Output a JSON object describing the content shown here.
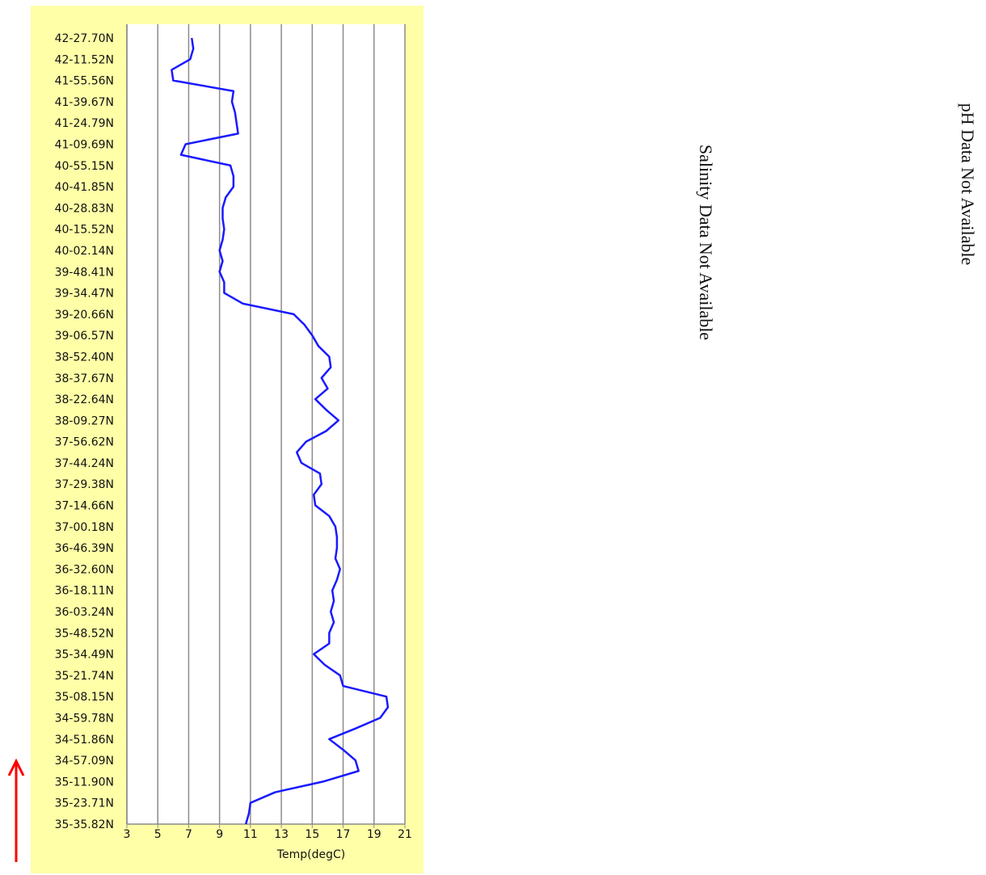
{
  "chart_data": {
    "type": "line",
    "orientation": "horizontal",
    "x_label": "Temp(degC)",
    "xlim": [
      3,
      21
    ],
    "xticks": [
      3,
      5,
      7,
      9,
      11,
      13,
      15,
      17,
      19,
      21
    ],
    "grid": true,
    "color": "#1a1aff",
    "categories": [
      "35-35.82N",
      null,
      "35-23.71N",
      null,
      "35-11.90N",
      null,
      "34-57.09N",
      null,
      "34-51.86N",
      null,
      "34-59.78N",
      null,
      "35-08.15N",
      null,
      "35-21.74N",
      null,
      "35-34.49N",
      null,
      "35-48.52N",
      null,
      "36-03.24N",
      null,
      "36-18.11N",
      null,
      "36-32.60N",
      null,
      "36-46.39N",
      null,
      "37-00.18N",
      null,
      "37-14.66N",
      null,
      "37-29.38N",
      null,
      "37-44.24N",
      null,
      "37-56.62N",
      null,
      "38-09.27N",
      null,
      "38-22.64N",
      null,
      "38-37.67N",
      null,
      "38-52.40N",
      null,
      "39-06.57N",
      null,
      "39-20.66N",
      null,
      "39-34.47N",
      null,
      "39-48.41N",
      null,
      "40-02.14N",
      null,
      "40-15.52N",
      null,
      "40-28.83N",
      null,
      "40-41.85N",
      null,
      "40-55.15N",
      null,
      "41-09.69N",
      null,
      "41-24.79N",
      null,
      "41-39.67N",
      null,
      "41-55.56N",
      null,
      "42-11.52N",
      null,
      "42-27.70N"
    ],
    "values": [
      10.7,
      10.9,
      11.0,
      12.6,
      15.7,
      18.0,
      17.8,
      17.0,
      16.1,
      17.8,
      19.4,
      19.9,
      19.8,
      17.0,
      16.8,
      15.8,
      15.1,
      16.1,
      16.1,
      16.4,
      16.2,
      16.4,
      16.3,
      16.6,
      16.8,
      16.5,
      16.6,
      16.6,
      16.5,
      16.1,
      15.2,
      15.1,
      15.6,
      15.5,
      14.3,
      14.0,
      14.6,
      15.9,
      16.7,
      15.9,
      15.2,
      16.0,
      15.6,
      16.2,
      16.1,
      15.4,
      15.0,
      14.5,
      13.8,
      10.5,
      9.3,
      9.3,
      9.0,
      9.2,
      9.0,
      9.2,
      9.3,
      9.2,
      9.2,
      9.4,
      9.9,
      9.9,
      9.7,
      6.5,
      6.8,
      10.2,
      10.1,
      10.0,
      9.8,
      9.9,
      6.0,
      5.9,
      7.1,
      7.3,
      7.2
    ]
  },
  "notes": [
    "Salinity Data Not Available",
    "pH Data Not Available"
  ]
}
